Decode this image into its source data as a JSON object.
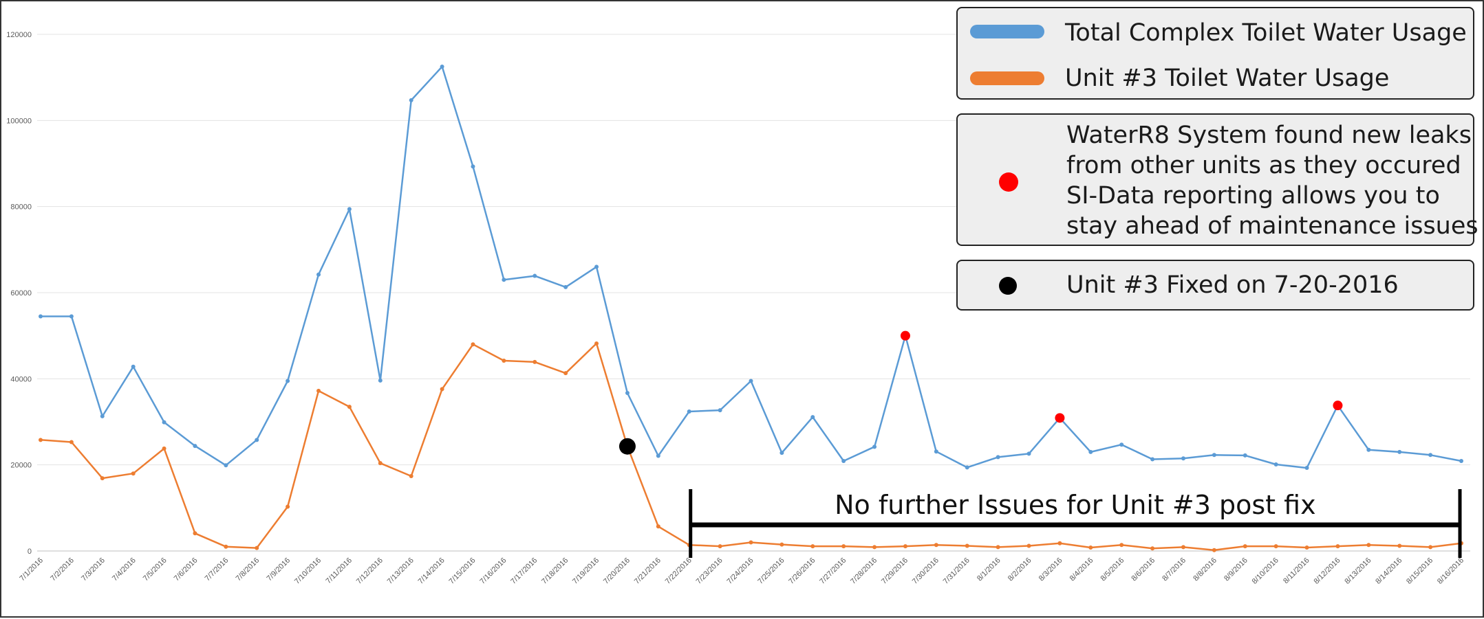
{
  "chart_data": {
    "type": "line",
    "categories": [
      "7/1/2016",
      "7/2/2016",
      "7/3/2016",
      "7/4/2016",
      "7/5/2016",
      "7/6/2016",
      "7/7/2016",
      "7/8/2016",
      "7/9/2016",
      "7/10/2016",
      "7/11/2016",
      "7/12/2016",
      "7/13/2016",
      "7/14/2016",
      "7/15/2016",
      "7/16/2016",
      "7/17/2016",
      "7/18/2016",
      "7/19/2016",
      "7/20/2016",
      "7/21/2016",
      "7/22/2016",
      "7/23/2016",
      "7/24/2016",
      "7/25/2016",
      "7/26/2016",
      "7/27/2016",
      "7/28/2016",
      "7/29/2016",
      "7/30/2016",
      "7/31/2016",
      "8/1/2016",
      "8/2/2016",
      "8/3/2016",
      "8/4/2016",
      "8/5/2016",
      "8/6/2016",
      "8/7/2016",
      "8/8/2016",
      "8/9/2016",
      "8/10/2016",
      "8/11/2016",
      "8/12/2016",
      "8/13/2016",
      "8/14/2016",
      "8/15/2016",
      "8/16/2016"
    ],
    "ylim": [
      0,
      120000
    ],
    "yticks": [
      0,
      20000,
      40000,
      60000,
      80000,
      100000,
      120000
    ],
    "grid": true,
    "series": [
      {
        "name": "Total Complex Toilet Water Usage",
        "color": "#5b9bd5",
        "values": [
          54500,
          54500,
          31300,
          42800,
          29900,
          24400,
          19900,
          25800,
          39500,
          64200,
          79400,
          39600,
          104700,
          112500,
          89300,
          63000,
          63900,
          61300,
          66000,
          36700,
          22100,
          32400,
          32700,
          39500,
          22800,
          31100,
          20900,
          24200,
          50000,
          23100,
          19400,
          21800,
          22600,
          30900,
          23000,
          24700,
          21300,
          21500,
          22300,
          22200,
          20100,
          19300,
          33800,
          23500,
          23000,
          22300,
          20900
        ]
      },
      {
        "name": "Unit #3 Toilet Water Usage",
        "color": "#ed7d31",
        "values": [
          25800,
          25300,
          16900,
          18000,
          23800,
          4100,
          1000,
          700,
          10300,
          37200,
          33500,
          20400,
          17400,
          37600,
          48000,
          44200,
          43900,
          41300,
          48200,
          24300,
          5700,
          1400,
          1100,
          2000,
          1500,
          1100,
          1100,
          900,
          1100,
          1400,
          1200,
          900,
          1200,
          1800,
          800,
          1400,
          600,
          900,
          200,
          1100,
          1100,
          800,
          1100,
          1400,
          1200,
          900,
          1800
        ]
      }
    ],
    "leak_markers": {
      "color": "#ff0000",
      "dates": [
        "7/29/2016",
        "8/3/2016",
        "8/12/2016"
      ],
      "values": [
        50000,
        30900,
        33800
      ]
    },
    "fix_marker": {
      "color": "#000000",
      "date": "7/20/2016",
      "value": 24300
    },
    "annotation": "No further Issues for Unit #3 post fix",
    "annotation_range": [
      "7/22/2016",
      "8/16/2016"
    ]
  },
  "legend": {
    "series1_label": "Total Complex Toilet Water Usage",
    "series2_label": "Unit #3 Toilet Water Usage",
    "leak_lines": [
      "WaterR8 System found new leaks",
      "from other units as they occured",
      "SI-Data reporting allows you to",
      "stay ahead of maintenance issues"
    ],
    "fix_label": "Unit #3 Fixed on 7-20-2016"
  }
}
